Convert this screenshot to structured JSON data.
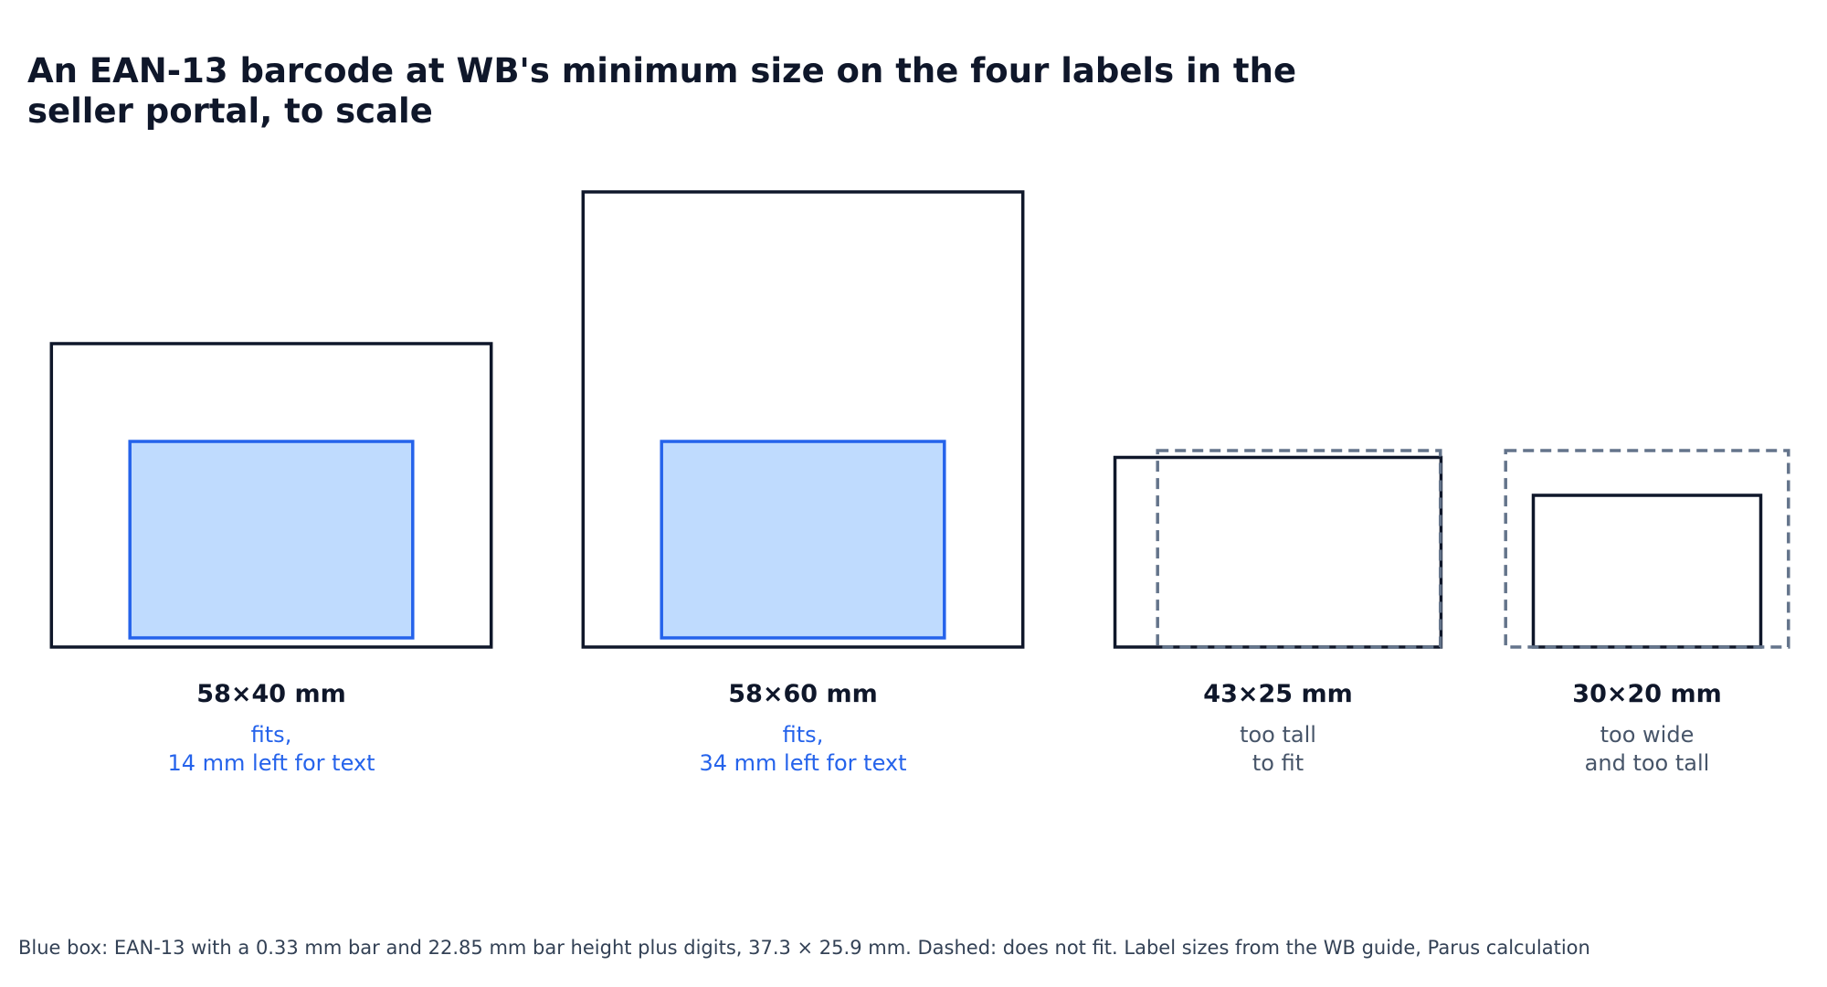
{
  "title": "An EAN-13 barcode at WB's minimum size on the four labels in the seller portal, to scale",
  "barcode": {
    "width_mm": 37.3,
    "height_mm": 25.9
  },
  "labels": [
    {
      "size": "58×40 mm",
      "width_mm": 58,
      "height_mm": 40,
      "fits": true,
      "status_lines": [
        "fits,",
        "14 mm left for text"
      ]
    },
    {
      "size": "58×60 mm",
      "width_mm": 58,
      "height_mm": 60,
      "fits": true,
      "status_lines": [
        "fits,",
        "34 mm left for text"
      ]
    },
    {
      "size": "43×25 mm",
      "width_mm": 43,
      "height_mm": 25,
      "fits": false,
      "status_lines": [
        "too tall",
        "to fit"
      ]
    },
    {
      "size": "30×20 mm",
      "width_mm": 30,
      "height_mm": 20,
      "fits": false,
      "status_lines": [
        "too wide",
        "and too tall"
      ]
    }
  ],
  "colors": {
    "label_stroke": "#0f172a",
    "barcode_fill": "#bfdbfe",
    "barcode_stroke": "#2563eb",
    "nofit_dash": "#64748b",
    "fits_text": "#2563eb",
    "nofit_text": "#475569"
  },
  "footnote": "Blue box: EAN-13 with a 0.33 mm bar and 22.85 mm bar height plus digits, 37.3 × 25.9 mm. Dashed: does not fit. Label sizes from the WB guide, Parus calculation"
}
